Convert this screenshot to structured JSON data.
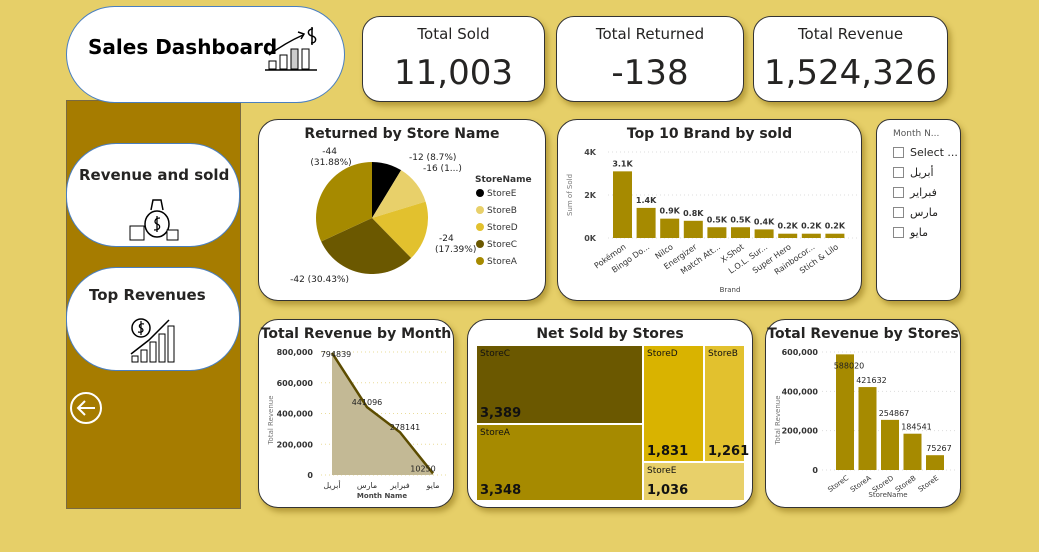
{
  "header": {
    "title": "Sales Dashboard",
    "icon": "chart-growth-dollar-icon"
  },
  "nav": {
    "items": [
      {
        "label": "Revenue and sold",
        "icon": "money-bag-icon"
      },
      {
        "label": "Top Revenues",
        "icon": "revenue-growth-icon"
      }
    ],
    "back_icon": "back-arrow-icon"
  },
  "kpis": [
    {
      "label": "Total Sold",
      "value": "11,003"
    },
    {
      "label": "Total Returned",
      "value": "-138"
    },
    {
      "label": "Total Revenue",
      "value": "1,524,326"
    }
  ],
  "colors": {
    "background": "#e6cf68",
    "sidebar": "#a67c00",
    "bar": "#a68a00",
    "area": "#c3b995",
    "line": "#5c4c00"
  },
  "slicer": {
    "title": "Month N...",
    "items": [
      "Select ...",
      "أبريل",
      "فبراير",
      "مارس",
      "مايو"
    ]
  },
  "chart_data": [
    {
      "type": "pie",
      "title": "Returned by Store Name",
      "legend_title": "StoreName",
      "legend_position": "right",
      "slices": [
        {
          "name": "StoreE",
          "value": -12,
          "label": "-12 (8.7%)",
          "color": "#000000"
        },
        {
          "name": "StoreB",
          "value": -16,
          "label": "-16 (1...)",
          "color": "#e8d06a"
        },
        {
          "name": "StoreD",
          "value": -24,
          "label": "-24 (17.39%)",
          "color": "#e2c12e"
        },
        {
          "name": "StoreC",
          "value": -42,
          "label": "-42 (30.43%)",
          "color": "#6b5800"
        },
        {
          "name": "StoreA",
          "value": -44,
          "label": "-44 (31.88%)",
          "color": "#a68a00"
        }
      ]
    },
    {
      "type": "bar",
      "title": "Top 10 Brand by sold",
      "xlabel": "Brand",
      "ylabel": "Sum of Sold",
      "ylim": [
        0,
        4000
      ],
      "yticks": [
        "0K",
        "2K",
        "4K"
      ],
      "categories": [
        "Pokémon",
        "Bingo Do...",
        "Nilco",
        "Energizer",
        "Match Att...",
        "X-Shot",
        "L.O.L. Sur...",
        "Super Hero",
        "Rainbocor...",
        "Stich & Lilo"
      ],
      "values": [
        3100,
        1400,
        900,
        800,
        500,
        500,
        400,
        200,
        200,
        200
      ],
      "labels": [
        "3.1K",
        "1.4K",
        "0.9K",
        "0.8K",
        "0.5K",
        "0.5K",
        "0.4K",
        "0.2K",
        "0.2K",
        "0.2K"
      ]
    },
    {
      "type": "area",
      "title": "Total Revenue by Month",
      "xlabel": "Month Name",
      "ylabel": "Total Revenue",
      "ylim": [
        0,
        800000
      ],
      "yticks": [
        "0",
        "200,000",
        "400,000",
        "600,000",
        "800,000"
      ],
      "categories": [
        "أبريل",
        "مارس",
        "فبراير",
        "مايو"
      ],
      "values": [
        794839,
        441096,
        278141,
        10250
      ]
    },
    {
      "type": "treemap",
      "title": "Net Sold by Stores",
      "items": [
        {
          "name": "StoreC",
          "value": "3,389",
          "color": "#6b5800"
        },
        {
          "name": "StoreA",
          "value": "3,348",
          "color": "#a68a00"
        },
        {
          "name": "StoreD",
          "value": "1,831",
          "color": "#d9b300"
        },
        {
          "name": "StoreB",
          "value": "1,261",
          "color": "#e2c12e"
        },
        {
          "name": "StoreE",
          "value": "1,036",
          "color": "#e8d06a"
        }
      ]
    },
    {
      "type": "bar",
      "title": "Total Revenue by Stores",
      "xlabel": "StoreName",
      "ylabel": "Total Revenue",
      "ylim": [
        0,
        600000
      ],
      "yticks": [
        "0",
        "200,000",
        "400,000",
        "600,000"
      ],
      "categories": [
        "StoreC",
        "StoreA",
        "StoreD",
        "StoreB",
        "StoreE"
      ],
      "values": [
        588020,
        421632,
        254867,
        184541,
        75267
      ]
    }
  ]
}
